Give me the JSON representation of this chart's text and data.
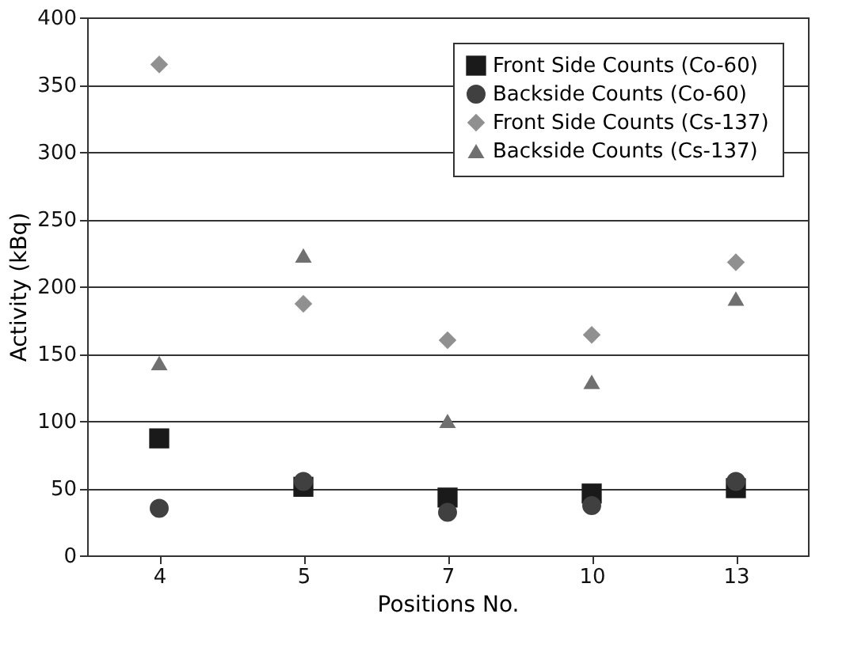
{
  "chart_data": {
    "type": "scatter",
    "xlabel": "Positions No.",
    "ylabel": "Activity (kBq)",
    "categories": [
      "4",
      "5",
      "7",
      "10",
      "13"
    ],
    "series": [
      {
        "name": "Front Side Counts (Co-60)",
        "color": "#1a1a1a",
        "marker": "square",
        "values": [
          87,
          51,
          43,
          46,
          50
        ]
      },
      {
        "name": "Backside Counts (Co-60)",
        "color": "#404040",
        "marker": "circle",
        "values": [
          35,
          55,
          32,
          37,
          55
        ]
      },
      {
        "name": "Front Side Counts (Cs-137)",
        "color": "#909090",
        "marker": "diamond",
        "values": [
          365,
          187,
          160,
          164,
          218
        ]
      },
      {
        "name": "Backside Counts (Cs-137)",
        "color": "#707070",
        "marker": "triangle",
        "values": [
          143,
          223,
          100,
          129,
          191
        ]
      }
    ],
    "ylim": [
      0,
      400
    ],
    "yticks": [
      0,
      50,
      100,
      150,
      200,
      250,
      300,
      350,
      400
    ],
    "grid": "y",
    "legend": "top right"
  }
}
